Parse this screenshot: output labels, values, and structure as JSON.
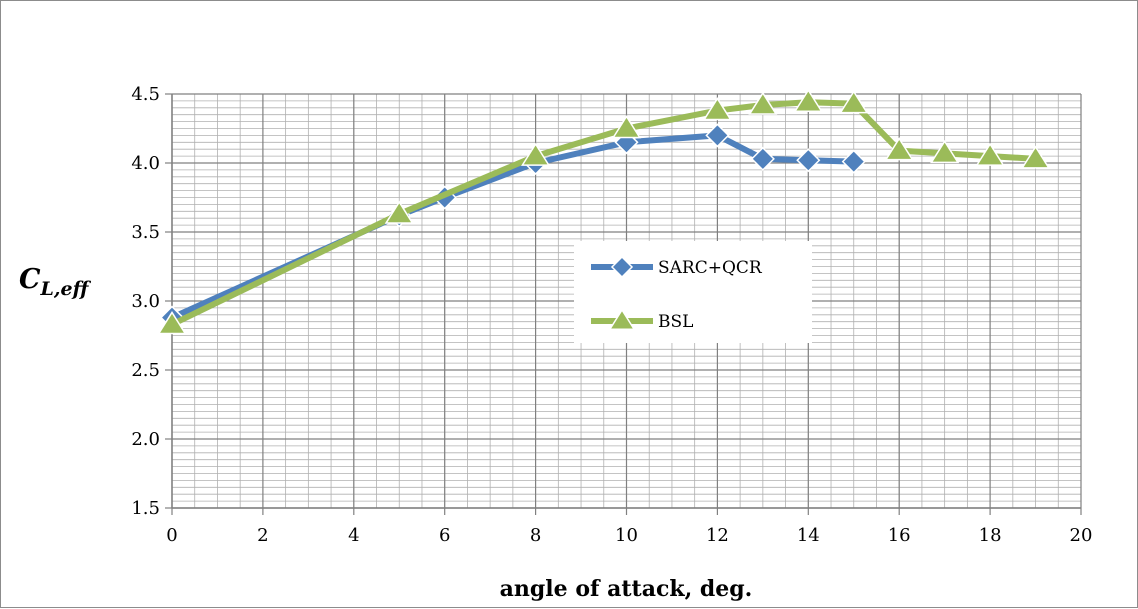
{
  "chart_data": {
    "type": "line",
    "xlabel": "angle of attack, deg.",
    "ylabel": {
      "main": "C",
      "subscript": "L,eff"
    },
    "xlim": [
      0,
      20
    ],
    "ylim": [
      1.5,
      4.5
    ],
    "xticks": [
      0,
      2,
      4,
      6,
      8,
      10,
      12,
      14,
      16,
      18,
      20
    ],
    "yticks": [
      "1.5",
      "2.0",
      "2.5",
      "3.0",
      "3.5",
      "4.0",
      "4.5"
    ],
    "grid": {
      "major": true,
      "minor": true
    },
    "legend_position": "center-right",
    "series": [
      {
        "name": "SARC+QCR",
        "color": "#4f81bd",
        "marker": "diamond",
        "x": [
          0,
          5,
          6,
          8,
          10,
          12,
          13,
          14,
          15
        ],
        "y": [
          2.88,
          3.62,
          3.75,
          4.0,
          4.15,
          4.2,
          4.03,
          4.02,
          4.01
        ]
      },
      {
        "name": "BSL",
        "color": "#9bbb59",
        "marker": "triangle",
        "x": [
          0,
          5,
          8,
          10,
          12,
          13,
          14,
          15,
          16,
          17,
          18,
          19
        ],
        "y": [
          2.83,
          3.63,
          4.05,
          4.25,
          4.38,
          4.42,
          4.44,
          4.43,
          4.09,
          4.07,
          4.05,
          4.03
        ]
      }
    ]
  }
}
